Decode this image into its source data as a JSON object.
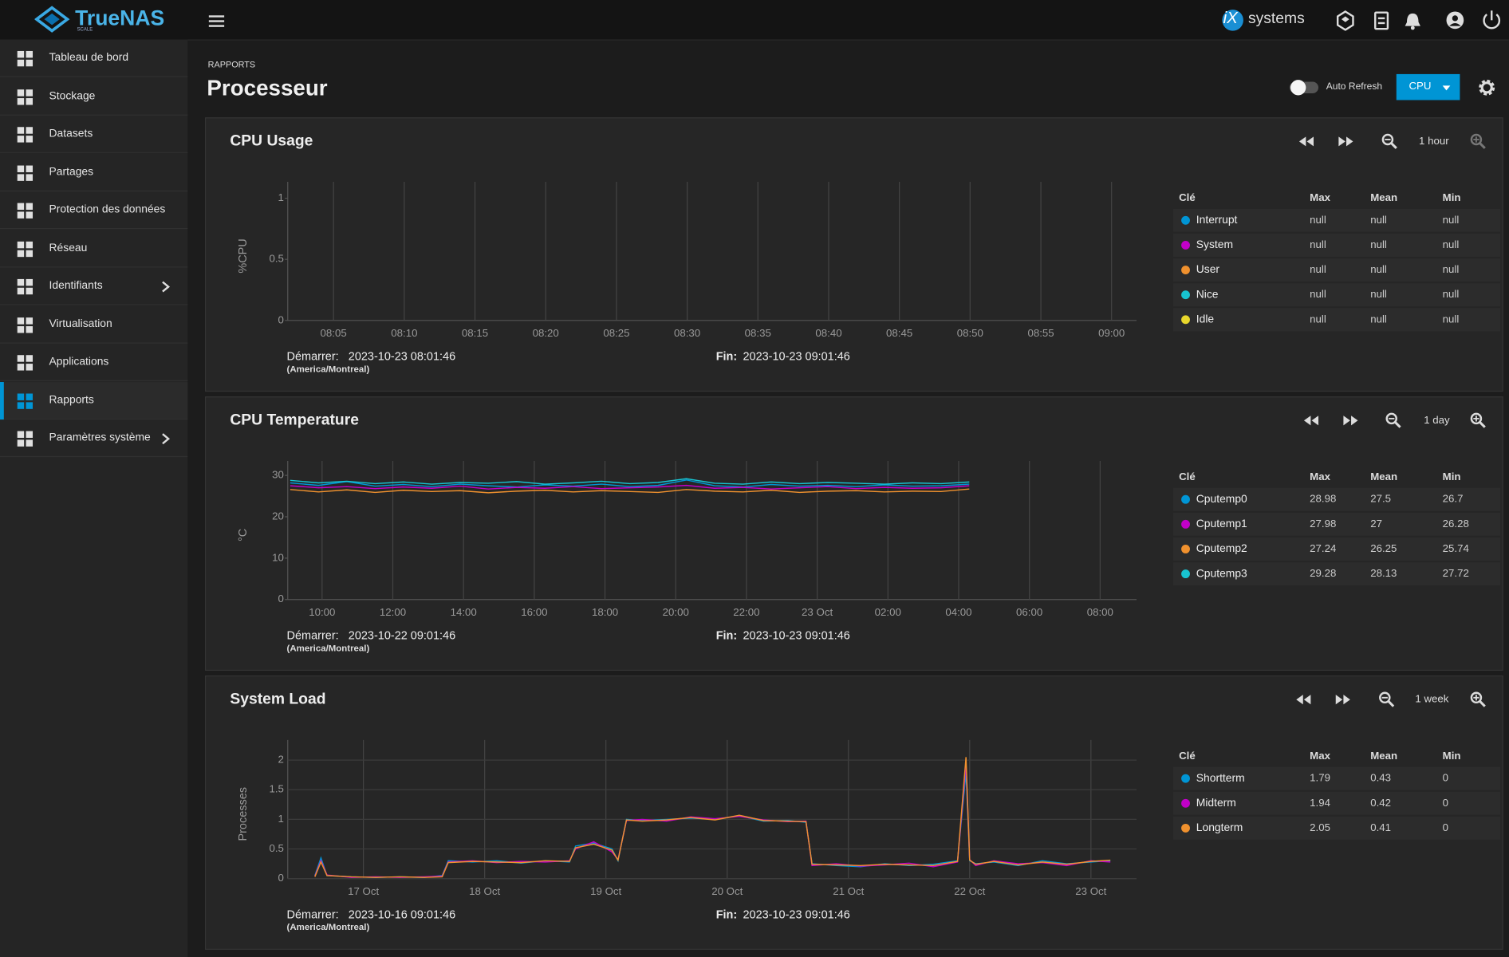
{
  "header": {
    "logo": "TrueNAS",
    "logo_sub": "SCALE",
    "vendor_mark": "iX",
    "vendor": "systems"
  },
  "sidebar": {
    "active": 9,
    "items": [
      {
        "label": "Tableau de bord"
      },
      {
        "label": "Stockage"
      },
      {
        "label": "Datasets"
      },
      {
        "label": "Partages"
      },
      {
        "label": "Protection des données"
      },
      {
        "label": "Réseau"
      },
      {
        "label": "Identifiants",
        "submenu": true
      },
      {
        "label": "Virtualisation"
      },
      {
        "label": "Applications"
      },
      {
        "label": "Rapports"
      },
      {
        "label": "Paramètres système",
        "submenu": true
      }
    ]
  },
  "page": {
    "breadcrumb": "RAPPORTS",
    "title": "Processeur",
    "auto_refresh": "Auto Refresh",
    "selector": "CPU"
  },
  "charts": [
    {
      "title": "CPU Usage",
      "range": "1 hour",
      "y_label": "%CPU",
      "ylim": [
        0,
        1.134
      ],
      "yticks": [
        0,
        0.5,
        1
      ],
      "hgrid": false,
      "xlim": [
        8.0294,
        9.0294
      ],
      "xticks": [
        {
          "value": 8.0833,
          "label": "08:05"
        },
        {
          "value": 8.1667,
          "label": "08:10"
        },
        {
          "value": 8.25,
          "label": "08:15"
        },
        {
          "value": 8.3333,
          "label": "08:20"
        },
        {
          "value": 8.4167,
          "label": "08:25"
        },
        {
          "value": 8.5,
          "label": "08:30"
        },
        {
          "value": 8.5833,
          "label": "08:35"
        },
        {
          "value": 8.6667,
          "label": "08:40"
        },
        {
          "value": 8.75,
          "label": "08:45"
        },
        {
          "value": 8.8333,
          "label": "08:50"
        },
        {
          "value": 8.9167,
          "label": "08:55"
        },
        {
          "value": 9,
          "label": "09:00"
        }
      ],
      "start_label": "Démarrer:",
      "start": "2023-10-23 08:01:46",
      "timezone": "(America/Montreal)",
      "end_label": "Fin:",
      "end": "2023-10-23 09:01:46",
      "legend_headers": [
        "Clé",
        "Max",
        "Mean",
        "Min"
      ],
      "series": [
        {
          "name": "Interrupt",
          "color": "#0095d5",
          "max": "null",
          "mean": "null",
          "min": "null"
        },
        {
          "name": "System",
          "color": "#c200c8",
          "max": "null",
          "mean": "null",
          "min": "null"
        },
        {
          "name": "User",
          "color": "#f0912e",
          "max": "null",
          "mean": "null",
          "min": "null"
        },
        {
          "name": "Nice",
          "color": "#18c4d1",
          "max": "null",
          "mean": "null",
          "min": "null"
        },
        {
          "name": "Idle",
          "color": "#e8d72c",
          "max": "null",
          "mean": "null",
          "min": "null"
        }
      ]
    },
    {
      "title": "CPU Temperature",
      "range": "1 day",
      "y_label": "°C",
      "ylim": [
        0,
        33.5
      ],
      "yticks": [
        0,
        10,
        20,
        30
      ],
      "hgrid": false,
      "xlim": [
        9.0294,
        33.0294
      ],
      "xticks": [
        {
          "value": 10,
          "label": "10:00"
        },
        {
          "value": 12,
          "label": "12:00"
        },
        {
          "value": 14,
          "label": "14:00"
        },
        {
          "value": 16,
          "label": "16:00"
        },
        {
          "value": 18,
          "label": "18:00"
        },
        {
          "value": 20,
          "label": "20:00"
        },
        {
          "value": 22,
          "label": "22:00"
        },
        {
          "value": 24,
          "label": "23 Oct"
        },
        {
          "value": 26,
          "label": "02:00"
        },
        {
          "value": 28,
          "label": "04:00"
        },
        {
          "value": 30,
          "label": "06:00"
        },
        {
          "value": 32,
          "label": "08:00"
        }
      ],
      "start_label": "Démarrer:",
      "start": "2023-10-22 09:01:46",
      "timezone": "(America/Montreal)",
      "end_label": "Fin:",
      "end": "2023-10-23 09:01:46",
      "legend_headers": [
        "Clé",
        "Max",
        "Mean",
        "Min"
      ],
      "x": [
        9.1,
        9.9,
        10.7,
        11.5,
        12.3,
        13.1,
        13.9,
        14.7,
        15.5,
        16.3,
        17.1,
        17.9,
        18.7,
        19.5,
        20.3,
        21.1,
        21.9,
        22.7,
        23.5,
        24.3,
        25.1,
        25.9,
        26.7,
        27.5,
        28.3
      ],
      "series": [
        {
          "name": "Cputemp0",
          "color": "#0095d5",
          "max": 28.98,
          "mean": 27.5,
          "min": 26.7,
          "values": [
            28.2,
            27.6,
            28.5,
            27.4,
            27.8,
            27.3,
            27.9,
            27.5,
            27.2,
            27.7,
            27.4,
            27.9,
            27.3,
            27.6,
            28.9,
            27.5,
            27.2,
            27.8,
            27.4,
            27.6,
            27.3,
            27.7,
            27.4,
            27.5,
            27.9
          ]
        },
        {
          "name": "Cputemp1",
          "color": "#c200c8",
          "max": 27.98,
          "mean": 27,
          "min": 26.28,
          "values": [
            27.5,
            27.0,
            27.3,
            26.8,
            27.2,
            26.9,
            27.4,
            26.7,
            27.1,
            26.9,
            27.3,
            26.8,
            27.0,
            27.2,
            27.6,
            26.9,
            27.1,
            26.7,
            27.0,
            27.3,
            26.8,
            27.1,
            26.9,
            27.0,
            27.5
          ]
        },
        {
          "name": "Cputemp2",
          "color": "#f0912e",
          "max": 27.24,
          "mean": 26.25,
          "min": 25.74,
          "values": [
            26.6,
            26.0,
            26.5,
            25.9,
            26.4,
            26.1,
            26.3,
            25.8,
            26.2,
            26.4,
            26.0,
            26.3,
            26.1,
            25.9,
            26.6,
            26.2,
            26.0,
            26.4,
            25.9,
            26.2,
            26.3,
            26.0,
            26.2,
            26.1,
            26.7
          ]
        },
        {
          "name": "Cputemp3",
          "color": "#18c4d1",
          "max": 29.28,
          "mean": 28.13,
          "min": 27.72,
          "values": [
            28.8,
            28.2,
            28.6,
            28.0,
            28.4,
            27.9,
            28.3,
            28.1,
            28.5,
            27.9,
            28.2,
            28.6,
            28.0,
            28.3,
            29.2,
            28.1,
            27.9,
            28.4,
            28.0,
            28.3,
            28.1,
            27.9,
            28.2,
            28.0,
            28.4
          ]
        }
      ]
    },
    {
      "title": "System Load",
      "range": "1 week",
      "y_label": "Processes",
      "ylim": [
        0,
        2.34
      ],
      "yticks": [
        0,
        0.5,
        1,
        1.5,
        2
      ],
      "hgrid": true,
      "xlim": [
        16.376,
        23.376
      ],
      "xticks": [
        {
          "value": 17,
          "label": "17 Oct"
        },
        {
          "value": 18,
          "label": "18 Oct"
        },
        {
          "value": 19,
          "label": "19 Oct"
        },
        {
          "value": 20,
          "label": "20 Oct"
        },
        {
          "value": 21,
          "label": "21 Oct"
        },
        {
          "value": 22,
          "label": "22 Oct"
        },
        {
          "value": 23,
          "label": "23 Oct"
        }
      ],
      "start_label": "Démarrer:",
      "start": "2023-10-16 09:01:46",
      "timezone": "(America/Montreal)",
      "end_label": "Fin:",
      "end": "2023-10-23 09:01:46",
      "legend_headers": [
        "Clé",
        "Max",
        "Mean",
        "Min"
      ],
      "x": [
        16.6,
        16.65,
        16.7,
        16.9,
        17.1,
        17.3,
        17.5,
        17.65,
        17.7,
        17.9,
        18.1,
        18.3,
        18.5,
        18.7,
        18.75,
        18.9,
        19.05,
        19.1,
        19.17,
        19.3,
        19.5,
        19.7,
        19.9,
        20.1,
        20.3,
        20.5,
        20.65,
        20.7,
        20.9,
        21.1,
        21.3,
        21.5,
        21.7,
        21.9,
        21.97,
        22.0,
        22.05,
        22.2,
        22.4,
        22.6,
        22.8,
        23.0,
        23.16
      ],
      "series": [
        {
          "name": "Shortterm",
          "color": "#0095d5",
          "max": 1.79,
          "mean": 0.43,
          "min": 0,
          "values": [
            0.05,
            0.35,
            0.05,
            0.03,
            0.02,
            0.03,
            0.02,
            0.05,
            0.3,
            0.28,
            0.3,
            0.26,
            0.3,
            0.28,
            0.55,
            0.6,
            0.5,
            0.3,
            1.0,
            0.98,
            1.0,
            1.02,
            1.0,
            1.06,
            0.97,
            0.98,
            0.95,
            0.25,
            0.22,
            0.2,
            0.25,
            0.22,
            0.24,
            0.3,
            1.79,
            0.3,
            0.25,
            0.28,
            0.22,
            0.3,
            0.25,
            0.28,
            0.3
          ]
        },
        {
          "name": "Midterm",
          "color": "#c200c8",
          "max": 1.94,
          "mean": 0.42,
          "min": 0,
          "values": [
            0.04,
            0.3,
            0.06,
            0.02,
            0.03,
            0.02,
            0.03,
            0.04,
            0.28,
            0.3,
            0.27,
            0.29,
            0.28,
            0.3,
            0.5,
            0.62,
            0.45,
            0.32,
            0.98,
            1.0,
            0.97,
            1.04,
            1.01,
            1.05,
            0.99,
            0.96,
            0.97,
            0.22,
            0.25,
            0.21,
            0.23,
            0.26,
            0.2,
            0.28,
            1.94,
            0.32,
            0.22,
            0.3,
            0.25,
            0.27,
            0.22,
            0.3,
            0.28
          ]
        },
        {
          "name": "Longterm",
          "color": "#f0912e",
          "max": 2.05,
          "mean": 0.41,
          "min": 0,
          "values": [
            0.03,
            0.28,
            0.05,
            0.03,
            0.02,
            0.03,
            0.02,
            0.03,
            0.27,
            0.29,
            0.28,
            0.27,
            0.3,
            0.29,
            0.52,
            0.58,
            0.48,
            0.31,
            0.99,
            0.97,
            0.99,
            1.03,
            0.99,
            1.07,
            0.98,
            0.97,
            0.96,
            0.24,
            0.23,
            0.22,
            0.24,
            0.23,
            0.22,
            0.29,
            2.05,
            0.31,
            0.24,
            0.29,
            0.23,
            0.28,
            0.24,
            0.29,
            0.31
          ]
        }
      ]
    }
  ]
}
